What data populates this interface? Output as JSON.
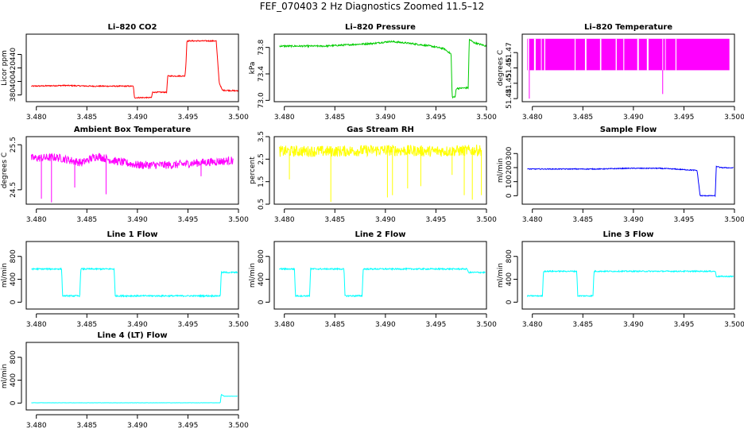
{
  "page_title": "FEF_070403  2 Hz Diagnostics Zoomed 11.5–12",
  "colors": {
    "co2": "#ff0000",
    "pressure": "#00cc00",
    "licor_temp": "#ff00ff",
    "box_temp": "#ff00ff",
    "rh": "#ffff00",
    "sample_flow": "#0000ff",
    "line_flow": "#00ffff",
    "axis": "#000000"
  },
  "chart_data": [
    {
      "id": "li820-co2",
      "type": "line",
      "title": "Li–820 CO2",
      "xlabel": "",
      "ylabel": "Licor ppm",
      "xlim": [
        3.479,
        3.5
      ],
      "ylim": [
        370,
        470
      ],
      "xticks": [
        3.48,
        3.485,
        3.49,
        3.495,
        3.5
      ],
      "xtick_labels": [
        "3.480",
        "3.485",
        "3.490",
        "3.495",
        "3.500"
      ],
      "yticks": [
        380,
        400,
        420,
        440
      ],
      "ytick_labels": [
        "380",
        "400",
        "420",
        "440"
      ],
      "series": [
        {
          "name": "CO2",
          "color": "#ff0000",
          "noise": 0.8,
          "points": [
            [
              3.4795,
              393
            ],
            [
              3.4828,
              394
            ],
            [
              3.4855,
              393
            ],
            [
              3.4896,
              393
            ],
            [
              3.4897,
              376
            ],
            [
              3.4914,
              376
            ],
            [
              3.4915,
              384
            ],
            [
              3.4929,
              384
            ],
            [
              3.493,
              408
            ],
            [
              3.4947,
              408
            ],
            [
              3.4948,
              424
            ],
            [
              3.4949,
              460
            ],
            [
              3.4978,
              460
            ],
            [
              3.4981,
              398
            ],
            [
              3.4984,
              387
            ],
            [
              3.5,
              386
            ]
          ]
        }
      ]
    },
    {
      "id": "li820-pressure",
      "type": "line",
      "title": "Li–820 Pressure",
      "xlabel": "",
      "ylabel": "kPa",
      "xlim": [
        3.479,
        3.5
      ],
      "ylim": [
        72.98,
        74.0
      ],
      "xticks": [
        3.48,
        3.485,
        3.49,
        3.495,
        3.5
      ],
      "xtick_labels": [
        "3.480",
        "3.485",
        "3.490",
        "3.495",
        "3.500"
      ],
      "yticks": [
        73.0,
        73.4,
        73.8
      ],
      "ytick_labels": [
        "73.0",
        "73.4",
        "73.8"
      ],
      "series": [
        {
          "name": "Pressure",
          "color": "#00cc00",
          "noise": 0.012,
          "points": [
            [
              3.4795,
              73.82
            ],
            [
              3.484,
              73.82
            ],
            [
              3.4888,
              73.86
            ],
            [
              3.4905,
              73.89
            ],
            [
              3.4925,
              73.86
            ],
            [
              3.4945,
              73.82
            ],
            [
              3.4958,
              73.78
            ],
            [
              3.4965,
              73.7
            ],
            [
              3.4966,
              73.05
            ],
            [
              3.4969,
              73.05
            ],
            [
              3.497,
              73.18
            ],
            [
              3.4982,
              73.19
            ],
            [
              3.4983,
              73.92
            ],
            [
              3.4988,
              73.87
            ],
            [
              3.5,
              73.82
            ]
          ]
        }
      ]
    },
    {
      "id": "li820-temperature",
      "type": "line",
      "title": "Li–820 Temperature",
      "xlabel": "",
      "ylabel": "degrees C",
      "xlim": [
        3.479,
        3.5
      ],
      "ylim": [
        51.438,
        51.482
      ],
      "xticks": [
        3.48,
        3.485,
        3.49,
        3.495,
        3.5
      ],
      "xtick_labels": [
        "3.480",
        "3.485",
        "3.490",
        "3.495",
        "3.500"
      ],
      "yticks": [
        51.44,
        51.45,
        51.46,
        51.47
      ],
      "ytick_labels": [
        "51.44",
        "51.45",
        "51.46",
        "51.47"
      ],
      "series": [
        {
          "name": "Temperature",
          "color": "#ff00ff",
          "kind": "quantized",
          "x_start": 3.4795,
          "x_end": 3.4995,
          "levels": [
            51.4585,
            51.479
          ],
          "spikes": [
            [
              3.4797,
              51.44
            ],
            [
              3.4929,
              51.443
            ]
          ]
        }
      ]
    },
    {
      "id": "ambient-box-temperature",
      "type": "line",
      "title": "Ambient Box Temperature",
      "xlabel": "",
      "ylabel": "degrees C",
      "xlim": [
        3.479,
        3.5
      ],
      "ylim": [
        24.18,
        25.68
      ],
      "xticks": [
        3.48,
        3.485,
        3.49,
        3.495,
        3.5
      ],
      "xtick_labels": [
        "3.480",
        "3.485",
        "3.490",
        "3.495",
        "3.500"
      ],
      "yticks": [
        24.5,
        25.5
      ],
      "ytick_labels": [
        "24.5",
        "25.5"
      ],
      "series": [
        {
          "name": "Box Temperature",
          "color": "#ff00ff",
          "noise": 0.09,
          "points": [
            [
              3.4795,
              25.2
            ],
            [
              3.482,
              25.22
            ],
            [
              3.4845,
              25.1
            ],
            [
              3.486,
              25.25
            ],
            [
              3.4875,
              25.15
            ],
            [
              3.49,
              25.05
            ],
            [
              3.4935,
              25.05
            ],
            [
              3.496,
              25.1
            ],
            [
              3.4995,
              25.15
            ]
          ],
          "spikes": [
            [
              3.4805,
              24.3
            ],
            [
              3.4815,
              24.22
            ],
            [
              3.4869,
              24.4
            ],
            [
              3.4838,
              24.55
            ],
            [
              3.4963,
              24.8
            ]
          ]
        }
      ]
    },
    {
      "id": "gas-stream-rh",
      "type": "line",
      "title": "Gas Stream RH",
      "xlabel": "",
      "ylabel": "percent",
      "xlim": [
        3.479,
        3.5
      ],
      "ylim": [
        0.5,
        3.5
      ],
      "xticks": [
        3.48,
        3.485,
        3.49,
        3.495,
        3.5
      ],
      "xtick_labels": [
        "3.480",
        "3.485",
        "3.490",
        "3.495",
        "3.500"
      ],
      "yticks": [
        0.5,
        1.5,
        2.5,
        3.5
      ],
      "ytick_labels": [
        "0.5",
        "1.5",
        "2.5",
        "3.5"
      ],
      "series": [
        {
          "name": "RH",
          "color": "#ffff00",
          "noise": 0.25,
          "points": [
            [
              3.4795,
              2.85
            ],
            [
              3.485,
              2.85
            ],
            [
              3.49,
              2.9
            ],
            [
              3.495,
              2.85
            ],
            [
              3.4995,
              2.9
            ]
          ],
          "spikes": [
            [
              3.4805,
              1.6
            ],
            [
              3.4846,
              0.6
            ],
            [
              3.4902,
              0.8
            ],
            [
              3.4907,
              0.9
            ],
            [
              3.4922,
              1.2
            ],
            [
              3.4935,
              1.3
            ],
            [
              3.4966,
              1.8
            ],
            [
              3.4978,
              0.9
            ],
            [
              3.4986,
              0.7
            ],
            [
              3.4995,
              0.9
            ]
          ]
        }
      ]
    },
    {
      "id": "sample-flow",
      "type": "line",
      "title": "Sample Flow",
      "xlabel": "",
      "ylabel": "ml/min",
      "xlim": [
        3.479,
        3.5
      ],
      "ylim": [
        -60,
        420
      ],
      "xticks": [
        3.48,
        3.485,
        3.49,
        3.495,
        3.5
      ],
      "xtick_labels": [
        "3.480",
        "3.485",
        "3.490",
        "3.495",
        "3.500"
      ],
      "yticks": [
        0,
        100,
        200,
        300
      ],
      "ytick_labels": [
        "0",
        "100",
        "200",
        "300"
      ],
      "series": [
        {
          "name": "Sample Flow",
          "color": "#0000ff",
          "noise": 3,
          "points": [
            [
              3.4795,
              190
            ],
            [
              3.4865,
              190
            ],
            [
              3.4895,
              195
            ],
            [
              3.4925,
              195
            ],
            [
              3.494,
              190
            ],
            [
              3.4963,
              180
            ],
            [
              3.4966,
              0
            ],
            [
              3.4981,
              0
            ],
            [
              3.4982,
              210
            ],
            [
              3.4986,
              200
            ],
            [
              3.4999,
              198
            ]
          ]
        }
      ]
    },
    {
      "id": "line-1-flow",
      "type": "line",
      "title": "Line 1 Flow",
      "xlabel": "",
      "ylabel": "ml/min",
      "xlim": [
        3.479,
        3.5
      ],
      "ylim": [
        -120,
        1060
      ],
      "xticks": [
        3.48,
        3.485,
        3.49,
        3.495,
        3.5
      ],
      "xtick_labels": [
        "3.480",
        "3.485",
        "3.490",
        "3.495",
        "3.500"
      ],
      "yticks": [
        0,
        400,
        800
      ],
      "ytick_labels": [
        "0",
        "400",
        "800"
      ],
      "series": [
        {
          "name": "Line 1",
          "color": "#00ffff",
          "noise": 12,
          "points": [
            [
              3.4795,
              580
            ],
            [
              3.4825,
              580
            ],
            [
              3.4826,
              110
            ],
            [
              3.4843,
              110
            ],
            [
              3.4844,
              580
            ],
            [
              3.4877,
              580
            ],
            [
              3.4878,
              110
            ],
            [
              3.4982,
              110
            ],
            [
              3.4983,
              520
            ],
            [
              3.4999,
              520
            ]
          ]
        }
      ]
    },
    {
      "id": "line-2-flow",
      "type": "line",
      "title": "Line 2 Flow",
      "xlabel": "",
      "ylabel": "ml/min",
      "xlim": [
        3.479,
        3.5
      ],
      "ylim": [
        -120,
        1060
      ],
      "xticks": [
        3.48,
        3.485,
        3.49,
        3.495,
        3.5
      ],
      "xtick_labels": [
        "3.480",
        "3.485",
        "3.490",
        "3.495",
        "3.500"
      ],
      "yticks": [
        0,
        400,
        800
      ],
      "ytick_labels": [
        "0",
        "400",
        "800"
      ],
      "series": [
        {
          "name": "Line 2",
          "color": "#00ffff",
          "noise": 12,
          "points": [
            [
              3.4795,
              580
            ],
            [
              3.481,
              580
            ],
            [
              3.4811,
              110
            ],
            [
              3.4825,
              110
            ],
            [
              3.4826,
              580
            ],
            [
              3.4859,
              580
            ],
            [
              3.486,
              110
            ],
            [
              3.4877,
              110
            ],
            [
              3.4878,
              580
            ],
            [
              3.4981,
              580
            ],
            [
              3.4982,
              520
            ],
            [
              3.4999,
              520
            ]
          ]
        }
      ]
    },
    {
      "id": "line-3-flow",
      "type": "line",
      "title": "Line 3 Flow",
      "xlabel": "",
      "ylabel": "ml/min",
      "xlim": [
        3.479,
        3.5
      ],
      "ylim": [
        -120,
        1060
      ],
      "xticks": [
        3.48,
        3.485,
        3.49,
        3.495,
        3.5
      ],
      "xtick_labels": [
        "3.480",
        "3.485",
        "3.490",
        "3.495",
        "3.500"
      ],
      "yticks": [
        0,
        400,
        800
      ],
      "ytick_labels": [
        "0",
        "400",
        "800"
      ],
      "series": [
        {
          "name": "Line 3",
          "color": "#00ffff",
          "noise": 10,
          "points": [
            [
              3.4795,
              110
            ],
            [
              3.481,
              110
            ],
            [
              3.4811,
              540
            ],
            [
              3.4844,
              540
            ],
            [
              3.4845,
              110
            ],
            [
              3.486,
              110
            ],
            [
              3.4861,
              540
            ],
            [
              3.4981,
              540
            ],
            [
              3.4982,
              450
            ],
            [
              3.4999,
              450
            ]
          ]
        }
      ]
    },
    {
      "id": "line-4-lt-flow",
      "type": "line",
      "title": "Line 4 (LT) Flow",
      "xlabel": "",
      "ylabel": "ml/min",
      "xlim": [
        3.479,
        3.5
      ],
      "ylim": [
        -120,
        1060
      ],
      "xticks": [
        3.48,
        3.485,
        3.49,
        3.495,
        3.5
      ],
      "xtick_labels": [
        "3.480",
        "3.485",
        "3.490",
        "3.495",
        "3.500"
      ],
      "yticks": [
        0,
        400,
        800
      ],
      "ytick_labels": [
        "0",
        "400",
        "800"
      ],
      "series": [
        {
          "name": "Line 4",
          "color": "#00ffff",
          "noise": 2,
          "points": [
            [
              3.4795,
              5
            ],
            [
              3.4982,
              5
            ],
            [
              3.4983,
              150
            ],
            [
              3.4986,
              120
            ],
            [
              3.4999,
              120
            ]
          ]
        }
      ]
    }
  ]
}
